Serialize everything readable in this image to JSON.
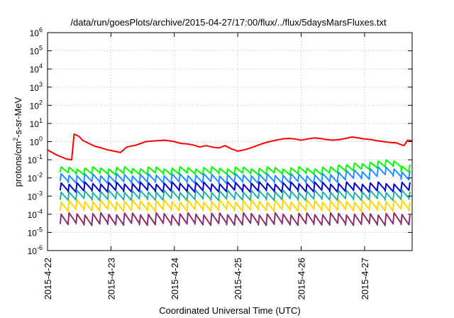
{
  "chart_data": {
    "type": "line",
    "title": "/data/run/goesPlots/archive/2015-04-27/17:00/flux/../flux/5daysMarsFluxes.txt",
    "xlabel": "Coordinated Universal Time (UTC)",
    "ylabel_parts": {
      "pre": "protons/cm",
      "sup": "2",
      "post": "-s-sr-MeV"
    },
    "yscale": "log",
    "ylim": [
      1e-06,
      1000000.0
    ],
    "xlim": [
      0,
      5.75
    ],
    "x_axis_start_date": "2015-04-22",
    "y_ticks": [
      {
        "exp": -6,
        "base": "10",
        "sup": "-6"
      },
      {
        "exp": -5,
        "base": "10",
        "sup": "-5"
      },
      {
        "exp": -4,
        "base": "10",
        "sup": "-4"
      },
      {
        "exp": -3,
        "base": "10",
        "sup": "-3"
      },
      {
        "exp": -2,
        "base": "10",
        "sup": "-2"
      },
      {
        "exp": -1,
        "base": "10",
        "sup": "-1"
      },
      {
        "exp": 0,
        "base": "10",
        "sup": "0"
      },
      {
        "exp": 1,
        "base": "10",
        "sup": "1"
      },
      {
        "exp": 2,
        "base": "10",
        "sup": "2"
      },
      {
        "exp": 3,
        "base": "10",
        "sup": "3"
      },
      {
        "exp": 4,
        "base": "10",
        "sup": "4"
      },
      {
        "exp": 5,
        "base": "10",
        "sup": "5"
      },
      {
        "exp": 6,
        "base": "10",
        "sup": "6"
      }
    ],
    "x_ticks": [
      {
        "x": 0,
        "label": "2015-4-22"
      },
      {
        "x": 1,
        "label": "2015-4-23"
      },
      {
        "x": 2,
        "label": "2015-4-24"
      },
      {
        "x": 3,
        "label": "2015-4-25"
      },
      {
        "x": 4,
        "label": "2015-4-26"
      },
      {
        "x": 5,
        "label": "2015-4-27"
      }
    ],
    "grid": true,
    "legend": "none",
    "series": [
      {
        "color": "#ff0000",
        "points": [
          [
            0,
            0.35
          ],
          [
            0.15,
            0.18
          ],
          [
            0.3,
            0.11
          ],
          [
            0.38,
            0.1
          ],
          [
            0.42,
            2.6
          ],
          [
            0.5,
            1.9
          ],
          [
            0.55,
            1.2
          ],
          [
            0.65,
            0.8
          ],
          [
            0.75,
            0.55
          ],
          [
            0.85,
            0.45
          ],
          [
            0.95,
            0.35
          ],
          [
            1.05,
            0.3
          ],
          [
            1.15,
            0.25
          ],
          [
            1.25,
            0.5
          ],
          [
            1.4,
            0.65
          ],
          [
            1.55,
            1.0
          ],
          [
            1.7,
            1.1
          ],
          [
            1.85,
            1.2
          ],
          [
            2.0,
            1.0
          ],
          [
            2.1,
            0.8
          ],
          [
            2.2,
            0.75
          ],
          [
            2.3,
            0.65
          ],
          [
            2.4,
            0.5
          ],
          [
            2.5,
            0.6
          ],
          [
            2.6,
            0.5
          ],
          [
            2.7,
            0.45
          ],
          [
            2.8,
            0.6
          ],
          [
            2.9,
            0.4
          ],
          [
            3.0,
            0.3
          ],
          [
            3.1,
            0.35
          ],
          [
            3.2,
            0.45
          ],
          [
            3.3,
            0.6
          ],
          [
            3.4,
            0.8
          ],
          [
            3.5,
            1.0
          ],
          [
            3.6,
            1.2
          ],
          [
            3.7,
            1.4
          ],
          [
            3.8,
            1.5
          ],
          [
            3.9,
            1.4
          ],
          [
            4.0,
            1.2
          ],
          [
            4.1,
            1.4
          ],
          [
            4.2,
            1.6
          ],
          [
            4.3,
            1.5
          ],
          [
            4.4,
            1.3
          ],
          [
            4.5,
            1.2
          ],
          [
            4.6,
            1.3
          ],
          [
            4.7,
            1.5
          ],
          [
            4.8,
            1.8
          ],
          [
            4.9,
            1.6
          ],
          [
            5.0,
            1.4
          ],
          [
            5.1,
            1.3
          ],
          [
            5.2,
            1.1
          ],
          [
            5.3,
            1.0
          ],
          [
            5.4,
            0.9
          ],
          [
            5.5,
            0.85
          ],
          [
            5.62,
            0.6
          ],
          [
            5.68,
            1.2
          ],
          [
            5.75,
            1.1
          ]
        ]
      },
      {
        "color": "#00ff00",
        "baseline": 0.018,
        "spike_factor": 2.0,
        "late_rise": true
      },
      {
        "color": "#1e90ff",
        "baseline": 0.006,
        "spike_factor": 2.5,
        "late_rise": true
      },
      {
        "color": "#0000cd",
        "baseline": 0.002,
        "spike_factor": 2.6,
        "late_rise": false
      },
      {
        "color": "#20b2aa",
        "baseline": 0.0007,
        "spike_factor": 2.6,
        "late_rise": false
      },
      {
        "color": "#ffd700",
        "baseline": 0.00018,
        "spike_factor": 3.0,
        "late_rise": false
      },
      {
        "color": "#8b2e6b",
        "baseline": 3e-05,
        "spike_factor": 3.5,
        "late_rise": false
      }
    ]
  }
}
